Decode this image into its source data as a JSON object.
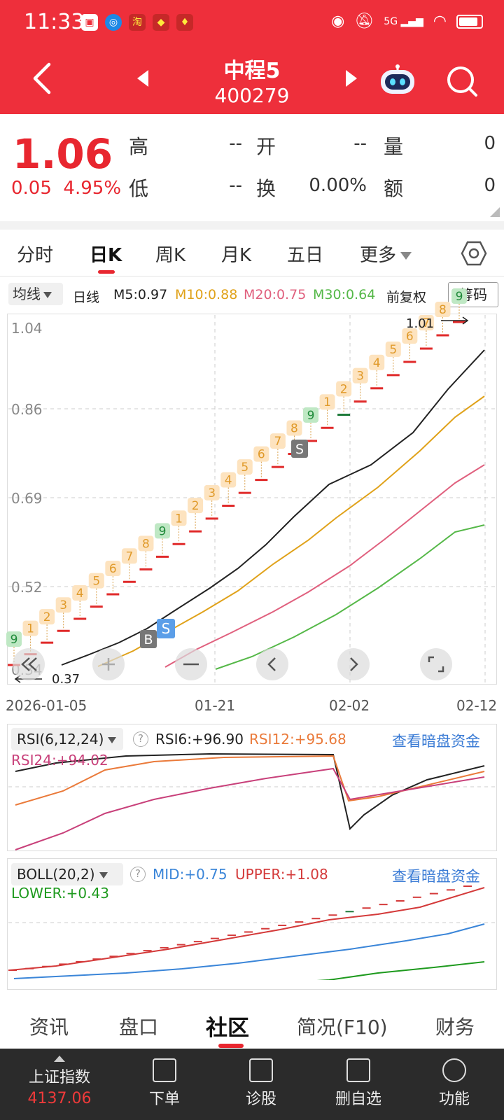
{
  "status_bar": {
    "time": "11:33",
    "network": "5G"
  },
  "header": {
    "title": "中程5",
    "code": "400279"
  },
  "quote": {
    "price": "1.06",
    "change": "0.05",
    "change_pct": "4.95%",
    "fields": [
      {
        "label": "高",
        "value": "--"
      },
      {
        "label": "开",
        "value": "--"
      },
      {
        "label": "量",
        "value": "0"
      },
      {
        "label": "低",
        "value": "--"
      },
      {
        "label": "换",
        "value": "0.00%"
      },
      {
        "label": "额",
        "value": "0"
      }
    ]
  },
  "period_tabs": [
    "分时",
    "日K",
    "周K",
    "月K",
    "五日",
    "更多"
  ],
  "active_period": "日K",
  "ma_bar": {
    "selector": "均线",
    "type": "日线",
    "items": [
      {
        "text": "M5:0.97",
        "color": "#222222"
      },
      {
        "text": "M10:0.88",
        "color": "#e0a21a"
      },
      {
        "text": "M20:0.75",
        "color": "#e0607e"
      },
      {
        "text": "M30:0.64",
        "color": "#55b848"
      }
    ],
    "adjust": "前复权",
    "chip_button": "筹码"
  },
  "chart_data": [
    {
      "type": "line",
      "title": "",
      "y_ticks": [
        "1.04",
        "0.86",
        "0.69",
        "0.52",
        "0.34"
      ],
      "x_labels": [
        "2026-01-05",
        "01-21",
        "02-02",
        "02-12"
      ],
      "ylim": [
        0.34,
        1.04
      ],
      "annotations": {
        "high": "1.01",
        "low": "0.37"
      },
      "td_labels": [
        "9",
        "1",
        "2",
        "3",
        "4",
        "5",
        "6",
        "7",
        "8",
        "9",
        "1",
        "2",
        "3",
        "4",
        "5",
        "6",
        "7",
        "8",
        "9",
        "1",
        "2",
        "3",
        "4",
        "5",
        "6",
        "7",
        "8",
        "9"
      ],
      "signals": [
        {
          "label": "B"
        },
        {
          "label": "S"
        },
        {
          "label": "S"
        }
      ],
      "series": [
        {
          "name": "M5",
          "color": "#222222"
        },
        {
          "name": "M10",
          "color": "#e0a21a"
        },
        {
          "name": "M20",
          "color": "#e0607e"
        },
        {
          "name": "M30",
          "color": "#55b848"
        }
      ]
    },
    {
      "type": "line",
      "title": "RSI(6,12,24)",
      "series": [
        {
          "name": "RSI6",
          "value": "+96.90",
          "color": "#222222"
        },
        {
          "name": "RSI12",
          "value": "+95.68",
          "color": "#ea7a3a"
        },
        {
          "name": "RSI24",
          "value": "+94.02",
          "color": "#c8407a"
        }
      ]
    },
    {
      "type": "line",
      "title": "BOLL(20,2)",
      "series": [
        {
          "name": "MID",
          "value": "+0.75",
          "color": "#3a85d8"
        },
        {
          "name": "UPPER",
          "value": "+1.08",
          "color": "#d43a3a"
        },
        {
          "name": "LOWER",
          "value": "+0.43",
          "color": "#1e9a1e"
        }
      ]
    }
  ],
  "indicator_link": "查看暗盘资金",
  "sub_tabs": [
    "资讯",
    "盘口",
    "社区",
    "简况(F10)",
    "财务"
  ],
  "active_sub_tab": "社区",
  "bottom_bar": {
    "index_name": "上证指数",
    "index_value": "4137.06",
    "items": [
      "下单",
      "诊股",
      "删自选",
      "功能"
    ]
  }
}
